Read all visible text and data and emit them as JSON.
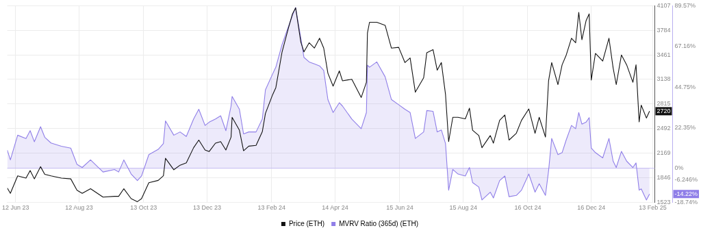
{
  "chart_data": {
    "type": "line",
    "x": [
      "2023-06-04",
      "2023-06-07",
      "2023-06-14",
      "2023-06-22",
      "2023-06-26",
      "2023-06-30",
      "2023-07-06",
      "2023-07-10",
      "2023-07-16",
      "2023-07-26",
      "2023-08-04",
      "2023-08-10",
      "2023-08-15",
      "2023-08-23",
      "2023-09-04",
      "2023-09-15",
      "2023-09-19",
      "2023-09-24",
      "2023-10-01",
      "2023-10-07",
      "2023-10-11",
      "2023-10-18",
      "2023-10-27",
      "2023-11-01",
      "2023-11-03",
      "2023-11-11",
      "2023-11-17",
      "2023-11-23",
      "2023-11-30",
      "2023-12-05",
      "2023-12-11",
      "2023-12-15",
      "2023-12-21",
      "2023-12-26",
      "2023-12-31",
      "2024-01-05",
      "2024-01-06",
      "2024-01-13",
      "2024-01-17",
      "2024-01-22",
      "2024-01-29",
      "2024-02-04",
      "2024-02-07",
      "2024-02-14",
      "2024-02-17",
      "2024-02-23",
      "2024-02-29",
      "2024-03-04",
      "2024-03-07",
      "2024-03-12",
      "2024-03-15",
      "2024-03-20",
      "2024-03-25",
      "2024-03-30",
      "2024-04-03",
      "2024-04-07",
      "2024-04-12",
      "2024-04-18",
      "2024-04-21",
      "2024-04-30",
      "2024-05-09",
      "2024-05-14",
      "2024-05-15",
      "2024-05-17",
      "2024-05-24",
      "2024-06-01",
      "2024-06-07",
      "2024-06-14",
      "2024-06-20",
      "2024-06-25",
      "2024-06-30",
      "2024-07-08",
      "2024-07-11",
      "2024-07-17",
      "2024-07-21",
      "2024-07-25",
      "2024-07-29",
      "2024-08-01",
      "2024-08-05",
      "2024-08-10",
      "2024-08-17",
      "2024-08-21",
      "2024-08-24",
      "2024-08-30",
      "2024-09-02",
      "2024-09-10",
      "2024-09-13",
      "2024-09-19",
      "2024-09-24",
      "2024-09-28",
      "2024-10-05",
      "2024-10-10",
      "2024-10-17",
      "2024-10-23",
      "2024-10-27",
      "2024-11-02",
      "2024-11-05",
      "2024-11-08",
      "2024-11-14",
      "2024-11-18",
      "2024-11-22",
      "2024-11-27",
      "2024-12-01",
      "2024-12-04",
      "2024-12-07",
      "2024-12-11",
      "2024-12-14",
      "2024-12-16",
      "2024-12-20",
      "2024-12-27",
      "2025-01-02",
      "2025-01-06",
      "2025-01-09",
      "2025-01-14",
      "2025-01-19",
      "2025-01-25",
      "2025-01-28",
      "2025-01-31",
      "2025-02-02",
      "2025-02-07",
      "2025-02-10"
    ],
    "series": [
      {
        "name": "Price (ETH)",
        "color": "#111111",
        "values": [
          1710,
          1640,
          1870,
          1840,
          1940,
          1830,
          1990,
          1890,
          1870,
          1840,
          1830,
          1680,
          1640,
          1700,
          1590,
          1600,
          1600,
          1700,
          1570,
          1530,
          1570,
          1780,
          1810,
          1870,
          2100,
          1950,
          2010,
          2040,
          2240,
          2340,
          2210,
          2190,
          2300,
          2320,
          2210,
          2380,
          2640,
          2470,
          2200,
          2260,
          2270,
          2450,
          2690,
          2940,
          3030,
          3500,
          3810,
          4000,
          4080,
          3630,
          3500,
          3620,
          3550,
          3680,
          3550,
          3220,
          3050,
          3250,
          3120,
          3140,
          2900,
          3100,
          3750,
          3890,
          3890,
          3850,
          3550,
          3560,
          3360,
          3420,
          2970,
          3160,
          3490,
          3530,
          3260,
          3360,
          2940,
          2320,
          2640,
          2640,
          2620,
          2760,
          2470,
          2400,
          2240,
          2400,
          2300,
          2600,
          2670,
          2340,
          2430,
          2600,
          2750,
          2430,
          2640,
          2380,
          3120,
          3360,
          3070,
          3330,
          3460,
          3680,
          3620,
          4020,
          3660,
          3910,
          4000,
          3130,
          3480,
          3380,
          3680,
          3290,
          3070,
          3460,
          3330,
          3100,
          3330,
          2580,
          2800,
          2630,
          2720
        ]
      },
      {
        "name": "MVRV Ratio (365d) (ETH)",
        "type": "area",
        "axis": "y2",
        "color": "#8f7ee8",
        "values": [
          10.0,
          4.6,
          18.2,
          16.4,
          20.7,
          14.6,
          22.9,
          17.1,
          13.9,
          12.1,
          11.1,
          2.1,
          0.4,
          4.6,
          -2.1,
          -0.7,
          -2.1,
          4.6,
          -3.2,
          -6.8,
          -4.3,
          7.5,
          10.4,
          13.6,
          26.1,
          18.2,
          20.0,
          17.5,
          27.1,
          32.5,
          23.6,
          25.4,
          27.1,
          28.9,
          20.7,
          34.3,
          39.6,
          32.5,
          18.9,
          20.0,
          20.0,
          27.1,
          43.2,
          52.1,
          55.7,
          68.2,
          77.9,
          84.3,
          88.6,
          71.8,
          61.1,
          58.6,
          57.5,
          56.4,
          53.9,
          37.9,
          30.7,
          36.1,
          34.3,
          27.1,
          21.8,
          30.7,
          56.8,
          55.7,
          58.6,
          50.4,
          37.9,
          35.0,
          32.5,
          30.7,
          16.4,
          20.0,
          31.8,
          31.4,
          20.0,
          21.1,
          13.6,
          -12.1,
          -0.7,
          -3.2,
          -4.3,
          0.4,
          -7.9,
          -10.4,
          -17.5,
          -13.2,
          -16.4,
          -6.8,
          -4.3,
          -15.7,
          -15.0,
          -12.1,
          -3.2,
          -13.2,
          -8.6,
          -15.0,
          -1.4,
          16.4,
          7.5,
          8.6,
          15.7,
          23.6,
          21.8,
          30.7,
          24.3,
          25.4,
          27.9,
          11.1,
          8.6,
          5.7,
          16.4,
          3.9,
          0.4,
          9.3,
          3.9,
          0.4,
          2.9,
          -12.1,
          -11.4,
          -17.5,
          -14.2
        ]
      }
    ],
    "xlim": [
      "2023-06-04",
      "2025-02-15"
    ],
    "xticks": [
      {
        "value": "2023-06-12",
        "label": "12 Jun 23"
      },
      {
        "value": "2023-08-12",
        "label": "12 Aug 23"
      },
      {
        "value": "2023-10-13",
        "label": "13 Oct 23"
      },
      {
        "value": "2023-12-13",
        "label": "13 Dec 23"
      },
      {
        "value": "2024-02-13",
        "label": "13 Feb 24"
      },
      {
        "value": "2024-04-14",
        "label": "14 Apr 24"
      },
      {
        "value": "2024-06-15",
        "label": "15 Jun 24"
      },
      {
        "value": "2024-08-15",
        "label": "15 Aug 24"
      },
      {
        "value": "2024-10-16",
        "label": "16 Oct 24"
      },
      {
        "value": "2024-12-16",
        "label": "16 Dec 24"
      },
      {
        "value": "2025-02-13",
        "label": "13 Feb 25"
      }
    ],
    "ylim": [
      1523,
      4107
    ],
    "yticks": [
      1523,
      1846,
      2169,
      2492,
      2815,
      3138,
      3461,
      3784,
      4107
    ],
    "y2lim": [
      -18.74,
      89.57
    ],
    "y2ticks": [
      {
        "value": -18.74,
        "label": "-18.74%"
      },
      {
        "value": -6.246,
        "label": "-6.246%"
      },
      {
        "value": 0,
        "label": "0%"
      },
      {
        "value": 22.35,
        "label": "22.35%"
      },
      {
        "value": 44.75,
        "label": "44.75%"
      },
      {
        "value": 67.16,
        "label": "67.16%"
      },
      {
        "value": 89.57,
        "label": "89.57%"
      }
    ],
    "ref_lines": [
      {
        "axis": "y2",
        "value": 0,
        "color": "#c9c0f2"
      }
    ],
    "annotations": [
      "2720",
      "-14.22%"
    ],
    "grid": true,
    "legend": "bottom",
    "marker": "none"
  }
}
